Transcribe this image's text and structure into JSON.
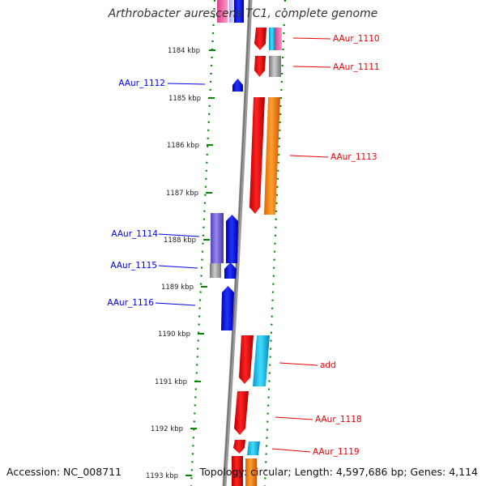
{
  "header": {
    "title": "Arthrobacter aurescens TC1, complete genome"
  },
  "footer": {
    "accession": "Accession: NC_008711",
    "topology": "Topology: circular; Length: 4,597,686 bp; Genes: 4,114"
  },
  "colors": {
    "forward_gene": "#ee0000",
    "reverse_gene": "#0000ee",
    "scale": "#008800",
    "backbone": "#888888",
    "cds_orange": "#ff8800",
    "cds_cyan": "#00ccff",
    "cds_purple": "#7b68ee",
    "cds_gray": "#aaaaaa"
  },
  "scale": {
    "unit": "kbp",
    "ticks": [
      "1184 kbp",
      "1185 kbp",
      "1186 kbp",
      "1187 kbp",
      "1188 kbp",
      "1189 kbp",
      "1190 kbp",
      "1191 kbp",
      "1192 kbp",
      "1193 kbp"
    ]
  },
  "genes": {
    "left": [
      {
        "label": "AAur_1112"
      },
      {
        "label": "AAur_1114"
      },
      {
        "label": "AAur_1115"
      },
      {
        "label": "AAur_1116"
      }
    ],
    "right": [
      {
        "label": "AAur_1110"
      },
      {
        "label": "AAur_1111"
      },
      {
        "label": "AAur_1113"
      },
      {
        "label": "add"
      },
      {
        "label": "AAur_1118"
      },
      {
        "label": "AAur_1119"
      }
    ]
  }
}
